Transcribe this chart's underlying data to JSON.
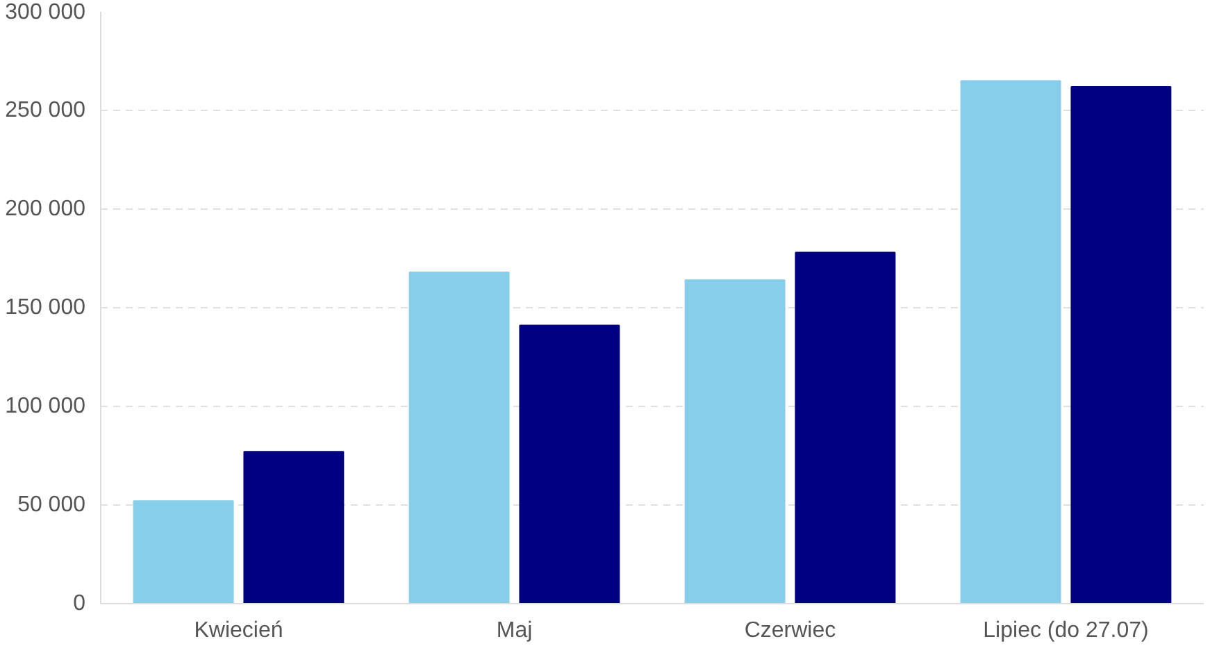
{
  "chart_data": {
    "type": "bar",
    "categories": [
      "Kwiecień",
      "Maj",
      "Czerwiec",
      "Lipiec (do 27.07)"
    ],
    "series": [
      {
        "color": "#87ceeb",
        "values": [
          52000,
          168000,
          164000,
          265000
        ]
      },
      {
        "color": "#000080",
        "values": [
          77000,
          141000,
          178000,
          262000
        ]
      }
    ],
    "ylim": [
      0,
      300000
    ],
    "yticks": [
      {
        "value": 0,
        "label": "0"
      },
      {
        "value": 50000,
        "label": "50 000"
      },
      {
        "value": 100000,
        "label": "100 000"
      },
      {
        "value": 150000,
        "label": "150 000"
      },
      {
        "value": 200000,
        "label": "200 000"
      },
      {
        "value": 250000,
        "label": "250 000"
      },
      {
        "value": 300000,
        "label": "300 000"
      }
    ],
    "grid": "y"
  }
}
